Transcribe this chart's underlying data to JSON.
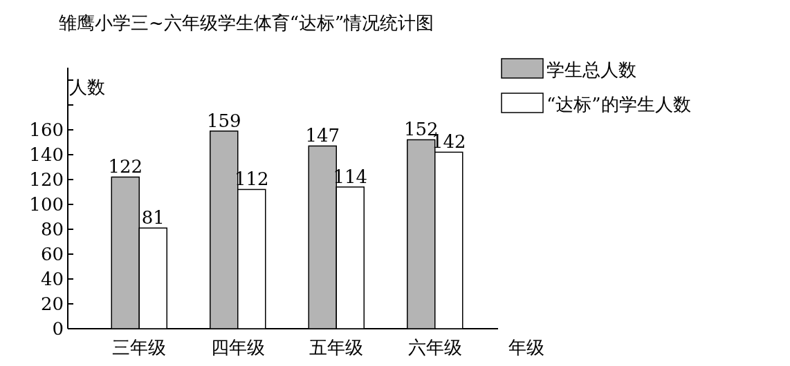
{
  "chart_data": {
    "type": "bar",
    "title": "雏鹰小学三~六年级学生体育“达标”情况统计图",
    "categories": [
      "三年级",
      "四年级",
      "五年级",
      "六年级"
    ],
    "series": [
      {
        "name": "学生总人数",
        "color": "#b4b4b4",
        "values": [
          122,
          159,
          147,
          152
        ]
      },
      {
        "name": "“达标”的学生人数",
        "color": "#ffffff",
        "values": [
          81,
          112,
          114,
          142
        ]
      }
    ],
    "xlabel": "年级",
    "ylabel": "人数",
    "ylim": [
      0,
      210
    ],
    "yticks": [
      0,
      20,
      40,
      60,
      80,
      100,
      120,
      140,
      160,
      {
        "value": 180,
        "label": null
      },
      {
        "value": 200,
        "label": null
      }
    ],
    "data_labels": true,
    "legend": "top right"
  }
}
